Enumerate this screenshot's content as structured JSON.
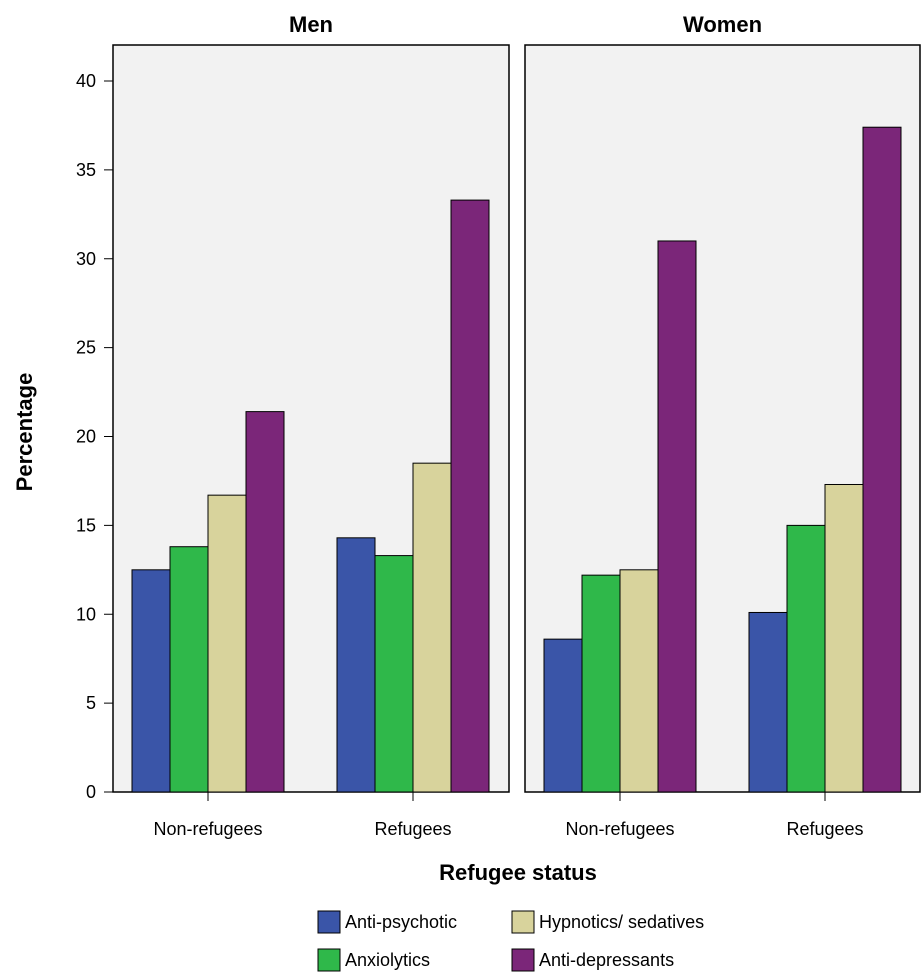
{
  "chart_data": {
    "type": "bar",
    "xlabel": "Refugee status",
    "ylabel": "Percentage",
    "ylim": [
      0,
      40
    ],
    "yticks": [
      0,
      5,
      10,
      15,
      20,
      25,
      30,
      35,
      40
    ],
    "grid": false,
    "legend_position": "bottom",
    "categories": [
      "Non-refugees",
      "Refugees"
    ],
    "series": [
      {
        "name": "Anti-psychotic",
        "color": "#3a55a8"
      },
      {
        "name": "Anxiolytics",
        "color": "#2fb84a"
      },
      {
        "name": "Hypnotics/ sedatives",
        "color": "#d8d39c"
      },
      {
        "name": "Anti-depressants",
        "color": "#7b2679"
      }
    ],
    "panels": [
      {
        "title": "Men",
        "values": {
          "Anti-psychotic": [
            12.5,
            14.3
          ],
          "Anxiolytics": [
            13.8,
            13.3
          ],
          "Hypnotics/ sedatives": [
            16.7,
            18.5
          ],
          "Anti-depressants": [
            21.4,
            33.3
          ]
        }
      },
      {
        "title": "Women",
        "values": {
          "Anti-psychotic": [
            8.6,
            10.1
          ],
          "Anxiolytics": [
            12.2,
            15.0
          ],
          "Hypnotics/ sedatives": [
            12.5,
            17.3
          ],
          "Anti-depressants": [
            31.0,
            37.4
          ]
        }
      }
    ]
  },
  "legend": {
    "items": [
      {
        "label": "Anti-psychotic",
        "color": "#3a55a8"
      },
      {
        "label": "Hypnotics/ sedatives",
        "color": "#d8d39c"
      },
      {
        "label": "Anxiolytics",
        "color": "#2fb84a"
      },
      {
        "label": "Anti-depressants",
        "color": "#7b2679"
      }
    ]
  },
  "colors": {
    "panel_background": "#f2f2f2",
    "border": "#000000"
  }
}
